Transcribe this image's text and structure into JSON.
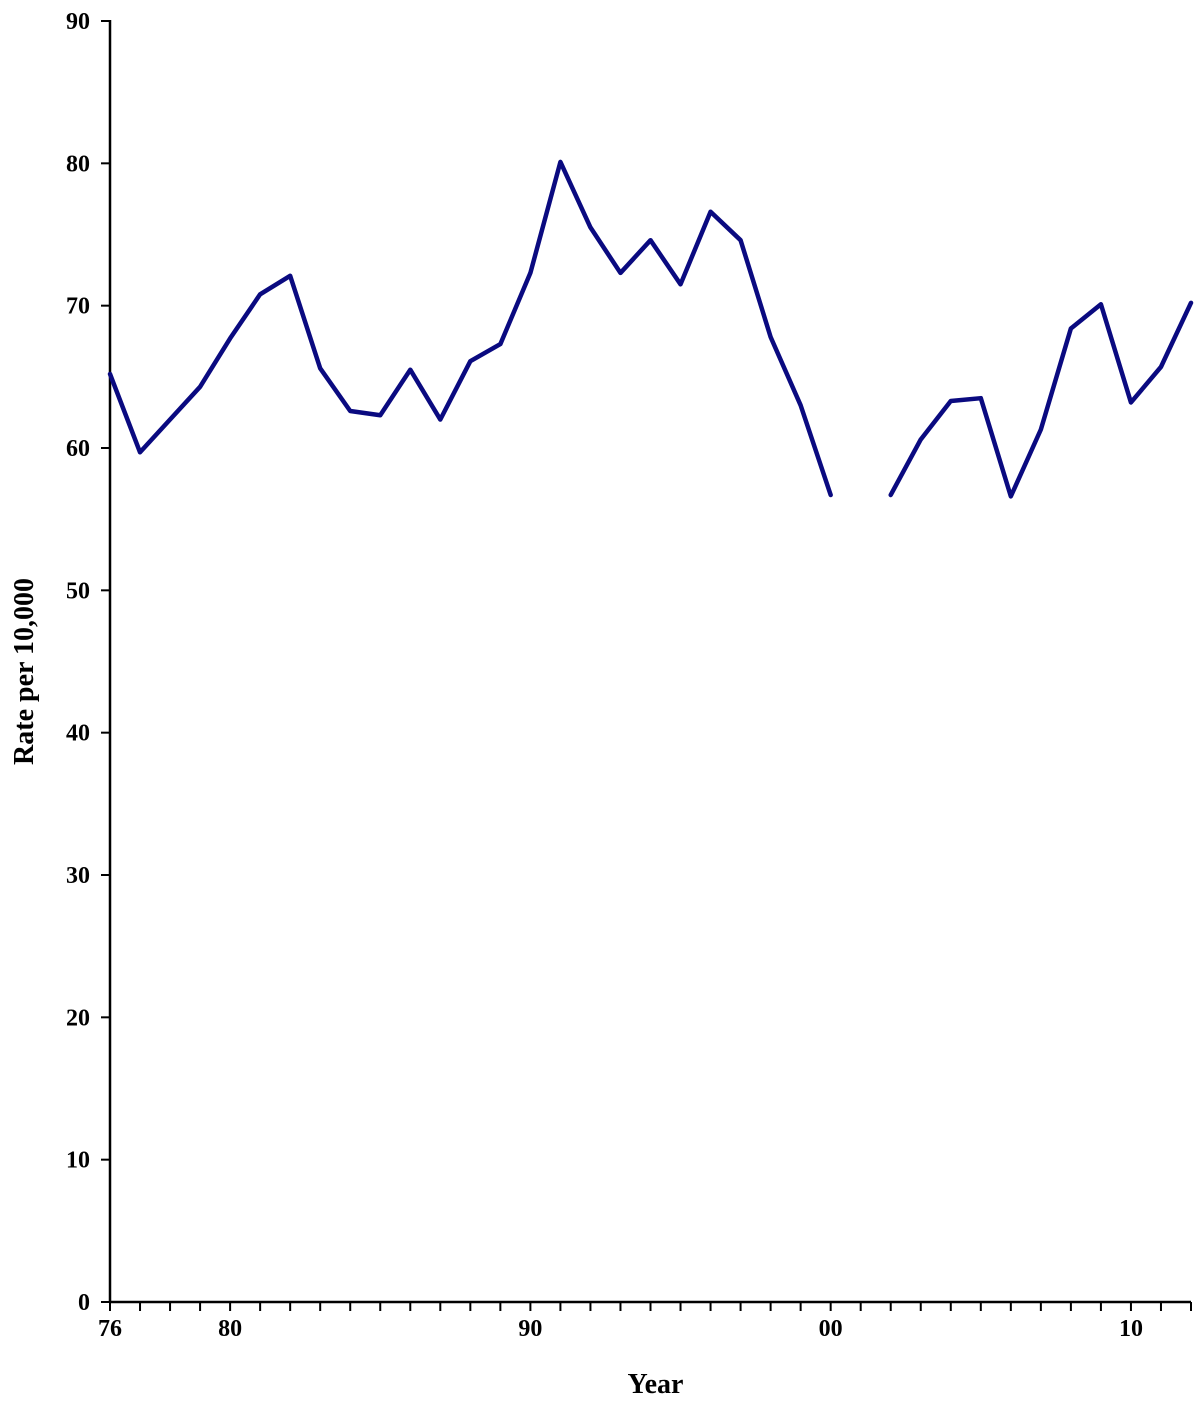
{
  "chart_data": {
    "type": "line",
    "xlabel": "Year",
    "ylabel": "Rate per 10,000",
    "ylim": [
      0,
      90
    ],
    "xlim": [
      1976,
      2012
    ],
    "y_ticks": [
      0,
      10,
      20,
      30,
      40,
      50,
      60,
      70,
      80,
      90
    ],
    "x_tick_labels": [
      {
        "x": 1976,
        "label": "76"
      },
      {
        "x": 1980,
        "label": "80"
      },
      {
        "x": 1990,
        "label": "90"
      },
      {
        "x": 2000,
        "label": "00"
      },
      {
        "x": 2010,
        "label": "10"
      }
    ],
    "grid": false,
    "legend": "none",
    "line_color": "#0a0a80",
    "series": [
      {
        "x": [
          1976,
          1977,
          1978,
          1979,
          1980,
          1981,
          1982,
          1983,
          1984,
          1985,
          1986,
          1987,
          1988,
          1989,
          1990,
          1991,
          1992,
          1993,
          1994,
          1995,
          1996,
          1997,
          1998,
          1999,
          2000,
          2001,
          2002,
          2003,
          2004,
          2005,
          2006,
          2007,
          2008,
          2009,
          2010,
          2011,
          2012
        ],
        "values": [
          65.2,
          59.7,
          62.0,
          64.3,
          67.7,
          70.8,
          72.1,
          65.6,
          62.6,
          62.3,
          65.5,
          62.0,
          66.1,
          67.3,
          72.3,
          80.1,
          75.5,
          72.3,
          74.6,
          71.5,
          76.6,
          74.6,
          67.8,
          63.0,
          56.7,
          null,
          56.7,
          60.6,
          63.3,
          63.5,
          56.6,
          61.3,
          68.4,
          70.1,
          63.2,
          65.7,
          70.2
        ]
      }
    ]
  }
}
